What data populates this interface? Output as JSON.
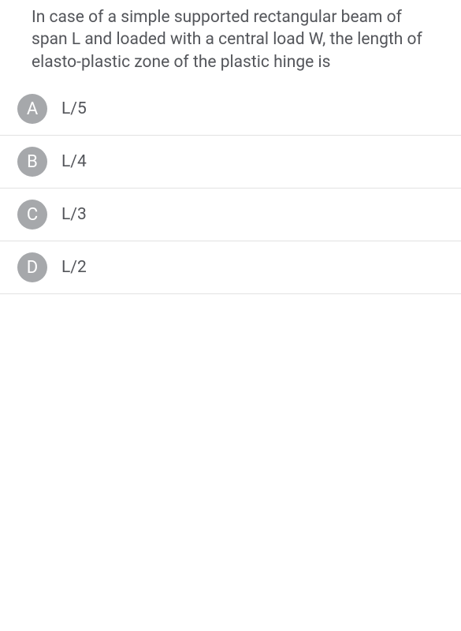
{
  "question": {
    "text": "In case of a simple supported rectangular beam of span L and loaded with a central load W, the length of elasto-plastic zone of the plastic hinge is",
    "text_color": "#53555a",
    "font_size": 21
  },
  "options": [
    {
      "letter": "A",
      "label": "L/5"
    },
    {
      "letter": "B",
      "label": "L/4"
    },
    {
      "letter": "C",
      "label": "L/3"
    },
    {
      "letter": "D",
      "label": "L/2"
    }
  ],
  "styles": {
    "badge_bg": "#a6a8ab",
    "badge_fg": "#ffffff",
    "divider_color": "#e2e2e2",
    "background": "#ffffff"
  }
}
